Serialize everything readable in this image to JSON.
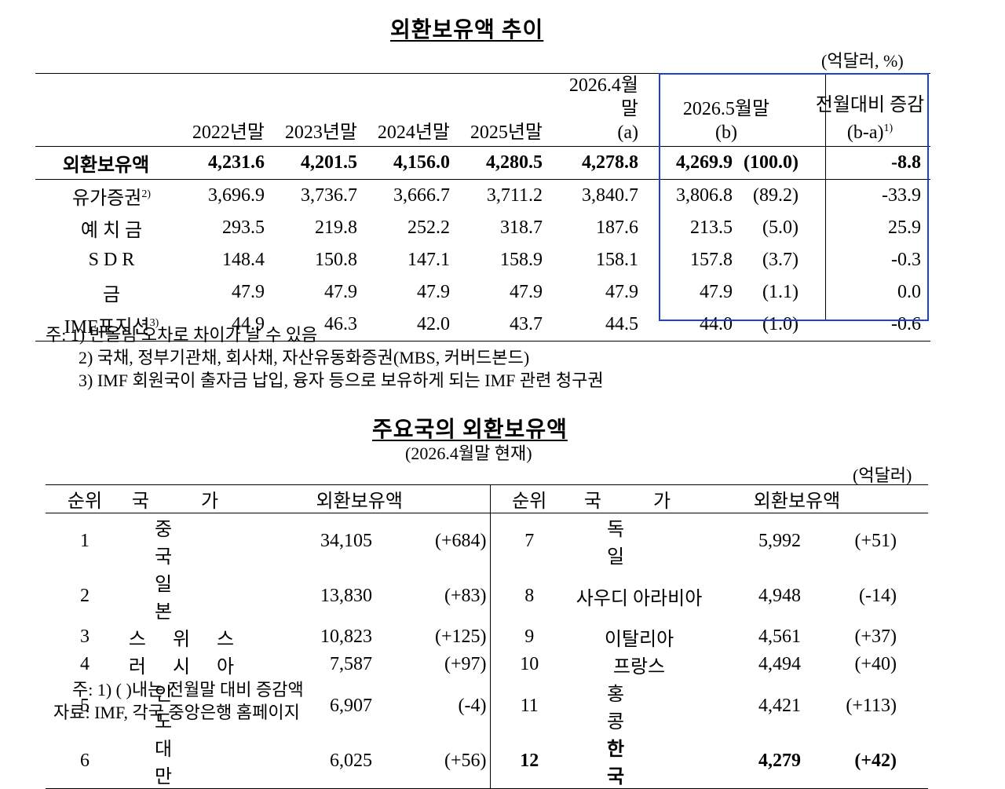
{
  "top": {
    "title": "외환보유액 추이",
    "unit": "(억달러, %)",
    "headers": {
      "y2022": "2022년말",
      "y2023": "2023년말",
      "y2024": "2024년말",
      "y2025": "2025년말",
      "apr_l1": "2026.4월말",
      "apr_l2": "(a)",
      "may_l1": "2026.5월말",
      "may_l2": "(b)",
      "diff_l1": "전월대비 증감",
      "diff_l2": "(b-a)",
      "diff_sup": "1)"
    },
    "rows": [
      {
        "label": "외환보유액",
        "sup": "",
        "v2022": "4,231.6",
        "v2023": "4,201.5",
        "v2024": "4,156.0",
        "v2025": "4,280.5",
        "apr": "4,278.8",
        "may": "4,269.9",
        "share": "(100.0)",
        "diff": "-8.8"
      },
      {
        "label": "유가증권",
        "sup": "2)",
        "v2022": "3,696.9",
        "v2023": "3,736.7",
        "v2024": "3,666.7",
        "v2025": "3,711.2",
        "apr": "3,840.7",
        "may": "3,806.8",
        "share": "(89.2)",
        "diff": "-33.9"
      },
      {
        "label": "예 치 금",
        "sup": "",
        "v2022": "293.5",
        "v2023": "219.8",
        "v2024": "252.2",
        "v2025": "318.7",
        "apr": "187.6",
        "may": "213.5",
        "share": "(5.0)",
        "diff": "25.9"
      },
      {
        "label": "S D R",
        "sup": "",
        "v2022": "148.4",
        "v2023": "150.8",
        "v2024": "147.1",
        "v2025": "158.9",
        "apr": "158.1",
        "may": "157.8",
        "share": "(3.7)",
        "diff": "-0.3"
      },
      {
        "label": "금",
        "sup": "",
        "v2022": "47.9",
        "v2023": "47.9",
        "v2024": "47.9",
        "v2025": "47.9",
        "apr": "47.9",
        "may": "47.9",
        "share": "(1.1)",
        "diff": "0.0"
      },
      {
        "label": "IMF포지션",
        "sup": "3)",
        "v2022": "44.9",
        "v2023": "46.3",
        "v2024": "42.0",
        "v2025": "43.7",
        "apr": "44.5",
        "may": "44.0",
        "share": "(1.0)",
        "diff": "-0.6"
      }
    ],
    "notes": [
      "주: 1) 반올림 오차로 차이가 날 수 있음",
      "2) 국채, 정부기관채, 회사채, 자산유동화증권(MBS, 커버드본드)",
      "3) IMF 회원국이 출자금 납입, 융자 등으로 보유하게 되는 IMF 관련 청구권"
    ]
  },
  "bottom": {
    "title": "주요국의 외환보유액",
    "subtitle": "(2026.4월말 현재)",
    "unit": "(억달러)",
    "headers": {
      "rank": "순위",
      "country": "국 가",
      "reserves": "외환보유액"
    },
    "left": [
      {
        "rank": "1",
        "country": "중 국",
        "value": "34,105",
        "change": "(+684)"
      },
      {
        "rank": "2",
        "country": "일 본",
        "value": "13,830",
        "change": "(+83)"
      },
      {
        "rank": "3",
        "country": "스 위 스",
        "value": "10,823",
        "change": "(+125)"
      },
      {
        "rank": "4",
        "country": "러 시 아",
        "value": "7,587",
        "change": "(+97)"
      },
      {
        "rank": "5",
        "country": "인 도",
        "value": "6,907",
        "change": "(-4)"
      },
      {
        "rank": "6",
        "country": "대 만",
        "value": "6,025",
        "change": "(+56)"
      }
    ],
    "right": [
      {
        "rank": "7",
        "country": "독 일",
        "value": "5,992",
        "change": "(+51)"
      },
      {
        "rank": "8",
        "country": "사우디 아라비아",
        "value": "4,948",
        "change": "(-14)"
      },
      {
        "rank": "9",
        "country": "이탈리아",
        "value": "4,561",
        "change": "(+37)"
      },
      {
        "rank": "10",
        "country": "프랑스",
        "value": "4,494",
        "change": "(+40)"
      },
      {
        "rank": "11",
        "country": "홍 콩",
        "value": "4,421",
        "change": "(+113)"
      },
      {
        "rank": "12",
        "country": "한 국",
        "value": "4,279",
        "change": "(+42)"
      }
    ],
    "notes": [
      "주: 1) ( )내는 전월말 대비 증감액",
      "자료: IMF, 각국 중앙은행 홈페이지"
    ]
  }
}
